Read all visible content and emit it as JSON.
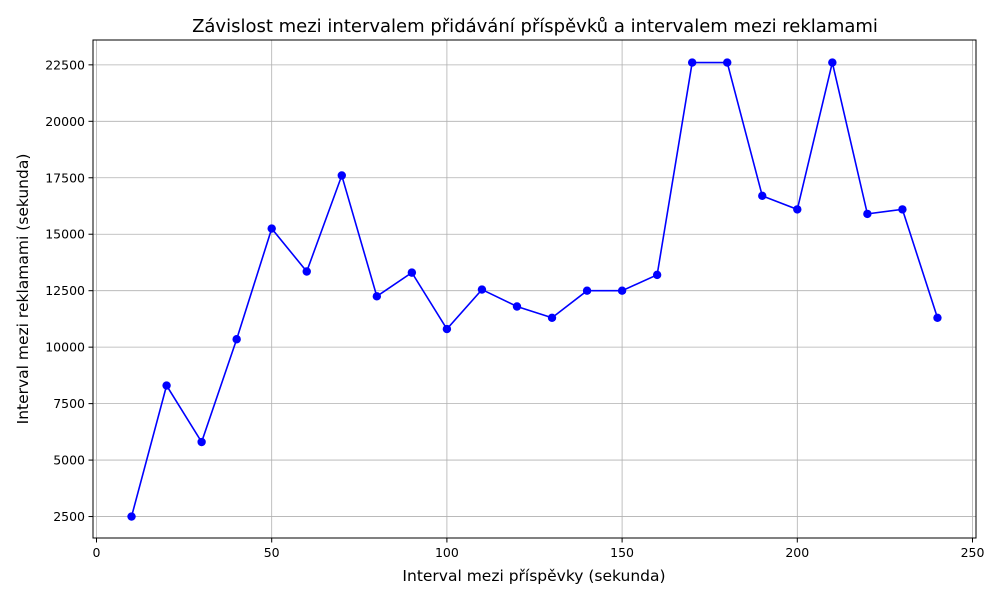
{
  "chart_data": {
    "type": "line",
    "title": "Závislost mezi intervalem přidávání příspěvků a intervalem mezi reklamami",
    "xlabel": "Interval mezi příspěvky (sekunda)",
    "ylabel": "Interval mezi reklamami (sekunda)",
    "xlim": [
      -1,
      251
    ],
    "ylim": [
      1550,
      23600
    ],
    "xticks": [
      0,
      50,
      100,
      150,
      200,
      250
    ],
    "yticks": [
      2500,
      5000,
      7500,
      10000,
      12500,
      15000,
      17500,
      20000,
      22500
    ],
    "grid": true,
    "x": [
      10,
      20,
      30,
      40,
      50,
      60,
      70,
      80,
      90,
      100,
      110,
      120,
      130,
      140,
      150,
      160,
      170,
      180,
      190,
      200,
      210,
      220,
      230,
      240
    ],
    "series": [
      {
        "color": "#0000ff",
        "marker": "circle",
        "values": [
          2500,
          8300,
          5800,
          10350,
          15250,
          13350,
          17600,
          12250,
          13300,
          10800,
          12550,
          11800,
          11300,
          12500,
          12500,
          13200,
          22600,
          22600,
          16700,
          16100,
          22600,
          15900,
          16100,
          11300
        ]
      }
    ]
  }
}
